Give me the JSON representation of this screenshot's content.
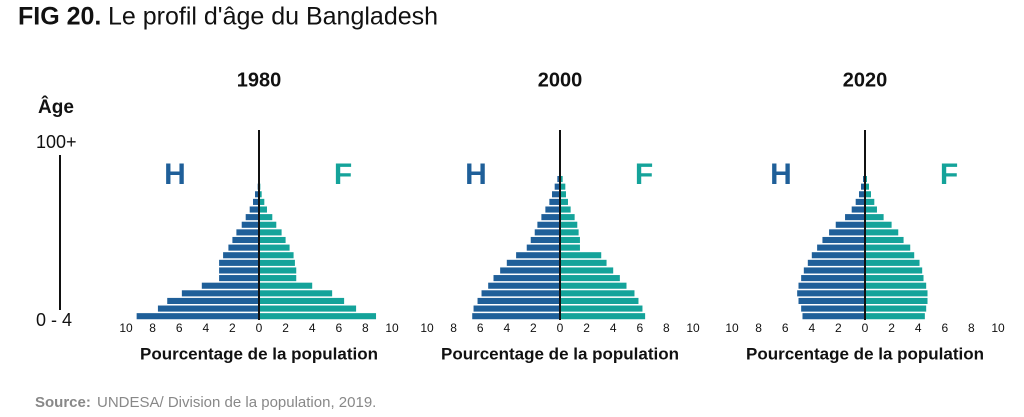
{
  "fig_label": "FIG 20.",
  "title": "Le profil d'âge du Bangladesh",
  "source_label": "Source:",
  "source": "UNDESA/ Division de la population, 2019.",
  "age_axis": {
    "title": "Âge",
    "categories": [
      "0 - 4",
      null,
      null,
      null,
      null,
      null,
      null,
      null,
      null,
      null,
      null,
      null,
      null,
      null,
      null,
      null,
      null,
      null,
      null,
      null,
      "100+"
    ]
  },
  "chart_data": [
    {
      "type": "pyramid",
      "title": "1980",
      "xlabel": "Pourcentage de la population",
      "xlim": [
        -10,
        10
      ],
      "xticks": [
        {
          "value": -10,
          "label": "10"
        },
        {
          "value": -8,
          "label": "8"
        },
        {
          "value": -6,
          "label": "6"
        },
        {
          "value": -4,
          "label": "4"
        },
        {
          "value": -2,
          "label": "2"
        },
        0,
        2,
        4,
        6,
        8,
        10
      ],
      "series": [
        {
          "name": "H",
          "color": "#1f5f99",
          "values": [
            9.2,
            7.6,
            6.9,
            5.8,
            4.3,
            3.0,
            3.0,
            3.0,
            2.7,
            2.3,
            2.0,
            1.7,
            1.3,
            1.0,
            0.7,
            0.45,
            0.3,
            0.1,
            0.05,
            0.02,
            0.01
          ]
        },
        {
          "name": "F",
          "color": "#14a39a",
          "values": [
            8.8,
            7.3,
            6.4,
            5.5,
            4.0,
            2.8,
            2.8,
            2.7,
            2.6,
            2.3,
            2.0,
            1.7,
            1.3,
            1.0,
            0.6,
            0.4,
            0.2,
            0.1,
            0.05,
            0.02,
            0.01
          ]
        }
      ]
    },
    {
      "type": "pyramid",
      "title": "2000",
      "xlabel": "Pourcentage de la population",
      "xlim": [
        -10,
        10
      ],
      "xticks": [
        {
          "value": -10,
          "label": "10"
        },
        {
          "value": -8,
          "label": "8"
        },
        {
          "value": -6,
          "label": "6"
        },
        {
          "value": -4,
          "label": "4"
        },
        {
          "value": -2,
          "label": "2"
        },
        0,
        2,
        4,
        6,
        8,
        10
      ],
      "series": [
        {
          "name": "H",
          "color": "#1f5f99",
          "values": [
            6.6,
            6.5,
            6.2,
            5.9,
            5.4,
            5.0,
            4.5,
            4.0,
            3.3,
            2.5,
            2.2,
            1.9,
            1.7,
            1.4,
            1.1,
            0.8,
            0.6,
            0.4,
            0.2,
            0.05,
            0.01
          ]
        },
        {
          "name": "F",
          "color": "#14a39a",
          "values": [
            6.4,
            6.2,
            5.9,
            5.6,
            5.0,
            4.5,
            4.0,
            3.5,
            3.1,
            1.5,
            1.5,
            1.4,
            1.3,
            1.1,
            0.8,
            0.6,
            0.45,
            0.4,
            0.2,
            0.05,
            0.01
          ]
        }
      ]
    },
    {
      "type": "pyramid",
      "title": "2020",
      "xlabel": "Pourcentage de la population",
      "xlim": [
        -10,
        10
      ],
      "xticks": [
        {
          "value": -10,
          "label": "10"
        },
        {
          "value": -8,
          "label": "8"
        },
        {
          "value": -6,
          "label": "6"
        },
        {
          "value": -4,
          "label": "4"
        },
        {
          "value": -2,
          "label": "2"
        },
        0,
        2,
        4,
        6,
        8,
        10
      ],
      "series": [
        {
          "name": "H",
          "color": "#1f5f99",
          "values": [
            4.7,
            4.8,
            5.0,
            5.1,
            5.0,
            4.8,
            4.6,
            4.3,
            4.0,
            3.6,
            3.2,
            2.7,
            2.2,
            1.5,
            1.0,
            0.7,
            0.45,
            0.3,
            0.15,
            0.05,
            0.02
          ]
        },
        {
          "name": "F",
          "color": "#14a39a",
          "values": [
            4.5,
            4.6,
            4.7,
            4.7,
            4.6,
            4.4,
            4.3,
            4.1,
            3.7,
            3.4,
            2.9,
            2.5,
            2.0,
            1.4,
            0.9,
            0.7,
            0.45,
            0.3,
            0.15,
            0.05,
            0.02
          ]
        }
      ]
    }
  ]
}
